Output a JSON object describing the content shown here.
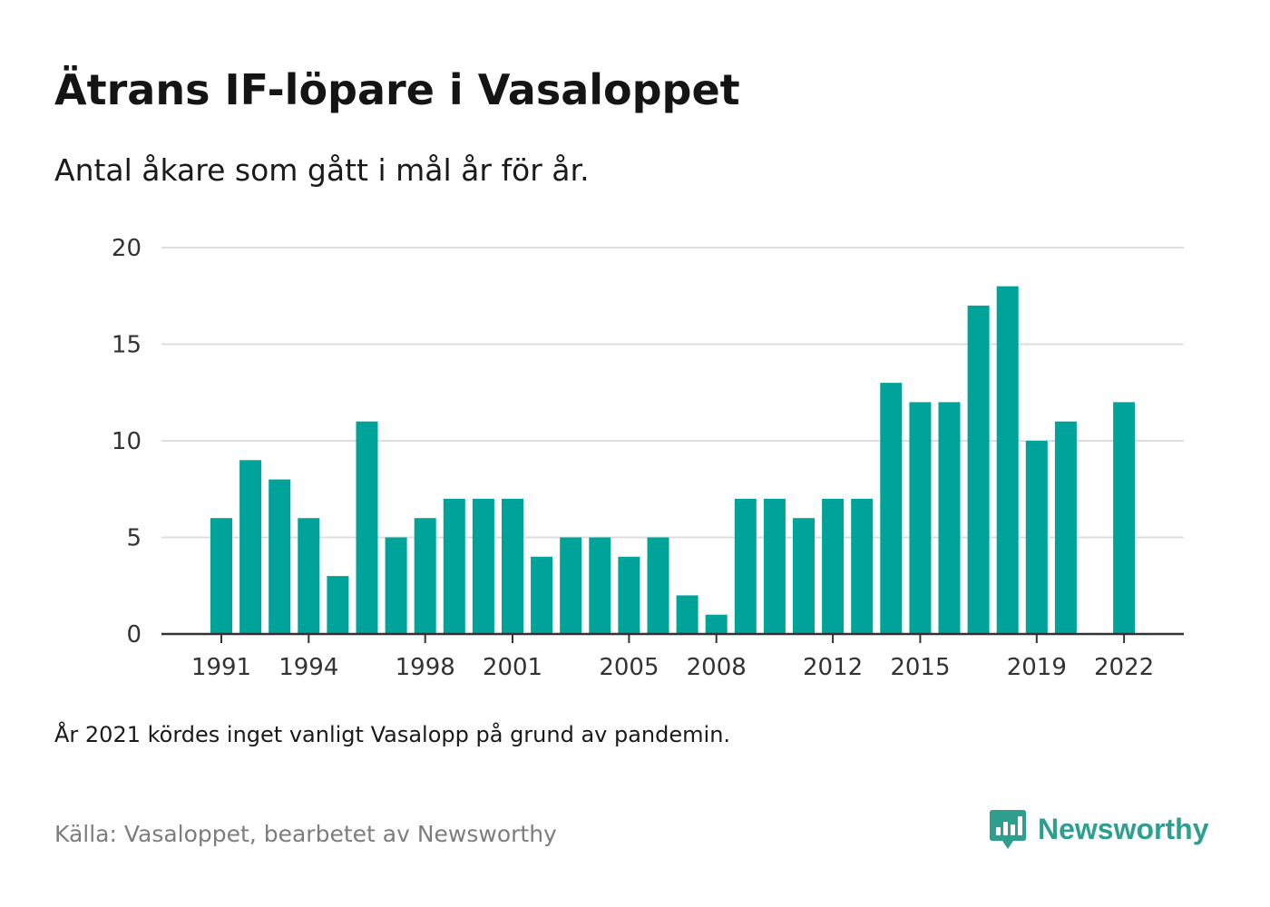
{
  "title": "Ätrans IF-löpare i Vasaloppet",
  "subtitle": "Antal åkare som gått i mål år för år.",
  "note": "År 2021 kördes inget vanligt Vasalopp på grund av pandemin.",
  "source": "Källa: Vasaloppet, bearbetet av Newsworthy",
  "logo": {
    "text": "Newsworthy",
    "icon": "newsworthy-logo-icon",
    "color": "#2e9e8f"
  },
  "chart_data": {
    "type": "bar",
    "x": [
      1991,
      1992,
      1993,
      1994,
      1995,
      1996,
      1997,
      1998,
      1999,
      2000,
      2001,
      2002,
      2003,
      2004,
      2005,
      2006,
      2007,
      2008,
      2009,
      2010,
      2011,
      2012,
      2013,
      2014,
      2015,
      2016,
      2017,
      2018,
      2019,
      2020,
      2021,
      2022
    ],
    "values": [
      6,
      9,
      8,
      6,
      3,
      11,
      5,
      6,
      7,
      7,
      7,
      4,
      5,
      5,
      4,
      5,
      2,
      1,
      7,
      7,
      6,
      7,
      7,
      13,
      12,
      12,
      17,
      18,
      10,
      11,
      null,
      12
    ],
    "x_tick_labels": [
      "1991",
      "1994",
      "1998",
      "2001",
      "2005",
      "2008",
      "2012",
      "2015",
      "2019",
      "2022"
    ],
    "y_ticks": [
      "0",
      "5",
      "10",
      "15",
      "20"
    ],
    "ylim": [
      0,
      20
    ],
    "grid": true,
    "bar_color": "#00a39a",
    "grid_color": "#dddddd",
    "axis_color": "#333333"
  }
}
